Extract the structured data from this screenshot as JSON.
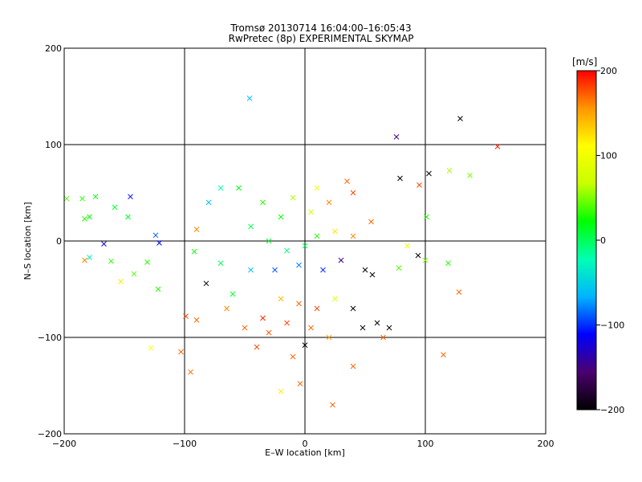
{
  "chart_data": {
    "type": "scatter",
    "title": "Tromsø 20130714 16:04:00–16:05:43",
    "subtitle": "RwPretec (8p) EXPERIMENTAL SKYMAP",
    "xlabel": "E–W location [km]",
    "ylabel": "N–S location [km]",
    "xlim": [
      -200,
      200
    ],
    "ylim": [
      -200,
      200
    ],
    "x_ticks": [
      "-200",
      "-100",
      "0",
      "100",
      "200"
    ],
    "y_ticks": [
      "-200",
      "-100",
      "0",
      "100",
      "200"
    ],
    "grid": true,
    "colorbar": {
      "label": "[m/s]",
      "range": [
        -200,
        200
      ],
      "ticks": [
        "-200",
        "-100",
        "0",
        "100",
        "200"
      ],
      "colormap": [
        "#000000",
        "#4b006e",
        "#0000ff",
        "#00b4ff",
        "#00ffb4",
        "#00ff00",
        "#c8ff00",
        "#ffff00",
        "#ff9600",
        "#ff0000"
      ]
    },
    "points": [
      {
        "x": -46,
        "y": 148,
        "v": -60
      },
      {
        "x": 129,
        "y": 127,
        "v": -200
      },
      {
        "x": 76,
        "y": 108,
        "v": -150
      },
      {
        "x": 160,
        "y": 98,
        "v": 190
      },
      {
        "x": 120,
        "y": 73,
        "v": 60
      },
      {
        "x": 137,
        "y": 68,
        "v": 50
      },
      {
        "x": 103,
        "y": 70,
        "v": -200
      },
      {
        "x": 95,
        "y": 58,
        "v": 180
      },
      {
        "x": 79,
        "y": 65,
        "v": -200
      },
      {
        "x": -145,
        "y": 46,
        "v": -110
      },
      {
        "x": -174,
        "y": 46,
        "v": 20
      },
      {
        "x": -185,
        "y": 44,
        "v": 30
      },
      {
        "x": -198,
        "y": 44,
        "v": 40
      },
      {
        "x": -183,
        "y": 23,
        "v": 30
      },
      {
        "x": -147,
        "y": 25,
        "v": 10
      },
      {
        "x": -179,
        "y": 25,
        "v": 20
      },
      {
        "x": -158,
        "y": 35,
        "v": 10
      },
      {
        "x": -124,
        "y": 6,
        "v": -90
      },
      {
        "x": -121,
        "y": -2,
        "v": -110
      },
      {
        "x": -167,
        "y": -3,
        "v": -120
      },
      {
        "x": -179,
        "y": -17,
        "v": -30
      },
      {
        "x": -161,
        "y": -21,
        "v": 30
      },
      {
        "x": -131,
        "y": -22,
        "v": 30
      },
      {
        "x": -142,
        "y": -34,
        "v": 40
      },
      {
        "x": -153,
        "y": -42,
        "v": 120
      },
      {
        "x": -183,
        "y": -20,
        "v": 160
      },
      {
        "x": -122,
        "y": -50,
        "v": 30
      },
      {
        "x": -82,
        "y": -44,
        "v": -200
      },
      {
        "x": -99,
        "y": -78,
        "v": 180
      },
      {
        "x": -90,
        "y": -82,
        "v": 170
      },
      {
        "x": -103,
        "y": -115,
        "v": 170
      },
      {
        "x": -128,
        "y": -111,
        "v": 110
      },
      {
        "x": -95,
        "y": -136,
        "v": 170
      },
      {
        "x": -92,
        "y": -11,
        "v": 20
      },
      {
        "x": -90,
        "y": 12,
        "v": 160
      },
      {
        "x": -70,
        "y": -23,
        "v": 0
      },
      {
        "x": -60,
        "y": -55,
        "v": 10
      },
      {
        "x": 115,
        "y": -118,
        "v": 170
      },
      {
        "x": 128,
        "y": -53,
        "v": 170
      },
      {
        "x": 119,
        "y": -23,
        "v": 30
      },
      {
        "x": 101,
        "y": 25,
        "v": 30
      },
      {
        "x": 94,
        "y": -15,
        "v": -200
      },
      {
        "x": 85,
        "y": -5,
        "v": 100
      },
      {
        "x": 78,
        "y": -28,
        "v": 40
      },
      {
        "x": 100,
        "y": -20,
        "v": 50
      },
      {
        "x": 65,
        "y": -100,
        "v": 170
      },
      {
        "x": 23,
        "y": -170,
        "v": 170
      },
      {
        "x": -4,
        "y": -148,
        "v": 170
      },
      {
        "x": -20,
        "y": -156,
        "v": 120
      },
      {
        "x": 40,
        "y": -130,
        "v": 170
      },
      {
        "x": 56,
        "y": -35,
        "v": -200
      },
      {
        "x": 50,
        "y": -30,
        "v": -200
      },
      {
        "x": 48,
        "y": -90,
        "v": -200
      },
      {
        "x": 60,
        "y": -85,
        "v": -200
      },
      {
        "x": 70,
        "y": -90,
        "v": -200
      },
      {
        "x": 40,
        "y": 50,
        "v": 180
      },
      {
        "x": 35,
        "y": 62,
        "v": 170
      },
      {
        "x": 20,
        "y": 40,
        "v": 160
      },
      {
        "x": 10,
        "y": 55,
        "v": 100
      },
      {
        "x": 5,
        "y": 30,
        "v": 80
      },
      {
        "x": -10,
        "y": 45,
        "v": 60
      },
      {
        "x": -20,
        "y": 25,
        "v": 20
      },
      {
        "x": -35,
        "y": 40,
        "v": 30
      },
      {
        "x": -55,
        "y": 55,
        "v": 20
      },
      {
        "x": -70,
        "y": 55,
        "v": -20
      },
      {
        "x": -80,
        "y": 40,
        "v": -60
      },
      {
        "x": -45,
        "y": 15,
        "v": 0
      },
      {
        "x": -30,
        "y": 0,
        "v": 10
      },
      {
        "x": -15,
        "y": -10,
        "v": -10
      },
      {
        "x": 0,
        "y": -5,
        "v": 0
      },
      {
        "x": 10,
        "y": 5,
        "v": 30
      },
      {
        "x": 25,
        "y": 10,
        "v": 120
      },
      {
        "x": 40,
        "y": 5,
        "v": 160
      },
      {
        "x": 55,
        "y": 20,
        "v": 170
      },
      {
        "x": 30,
        "y": -20,
        "v": -150
      },
      {
        "x": 15,
        "y": -30,
        "v": -100
      },
      {
        "x": -5,
        "y": -25,
        "v": -80
      },
      {
        "x": -25,
        "y": -30,
        "v": -90
      },
      {
        "x": -45,
        "y": -30,
        "v": -60
      },
      {
        "x": -20,
        "y": -60,
        "v": 140
      },
      {
        "x": -5,
        "y": -65,
        "v": 170
      },
      {
        "x": 10,
        "y": -70,
        "v": 180
      },
      {
        "x": 25,
        "y": -60,
        "v": 90
      },
      {
        "x": 40,
        "y": -70,
        "v": -200
      },
      {
        "x": -35,
        "y": -80,
        "v": 190
      },
      {
        "x": -15,
        "y": -85,
        "v": 180
      },
      {
        "x": 5,
        "y": -90,
        "v": 170
      },
      {
        "x": -30,
        "y": -95,
        "v": 175
      },
      {
        "x": -50,
        "y": -90,
        "v": 170
      },
      {
        "x": -40,
        "y": -110,
        "v": 180
      },
      {
        "x": -10,
        "y": -120,
        "v": 170
      },
      {
        "x": 20,
        "y": -100,
        "v": 150
      },
      {
        "x": 0,
        "y": -108,
        "v": -200
      },
      {
        "x": -65,
        "y": -70,
        "v": 160
      }
    ]
  }
}
